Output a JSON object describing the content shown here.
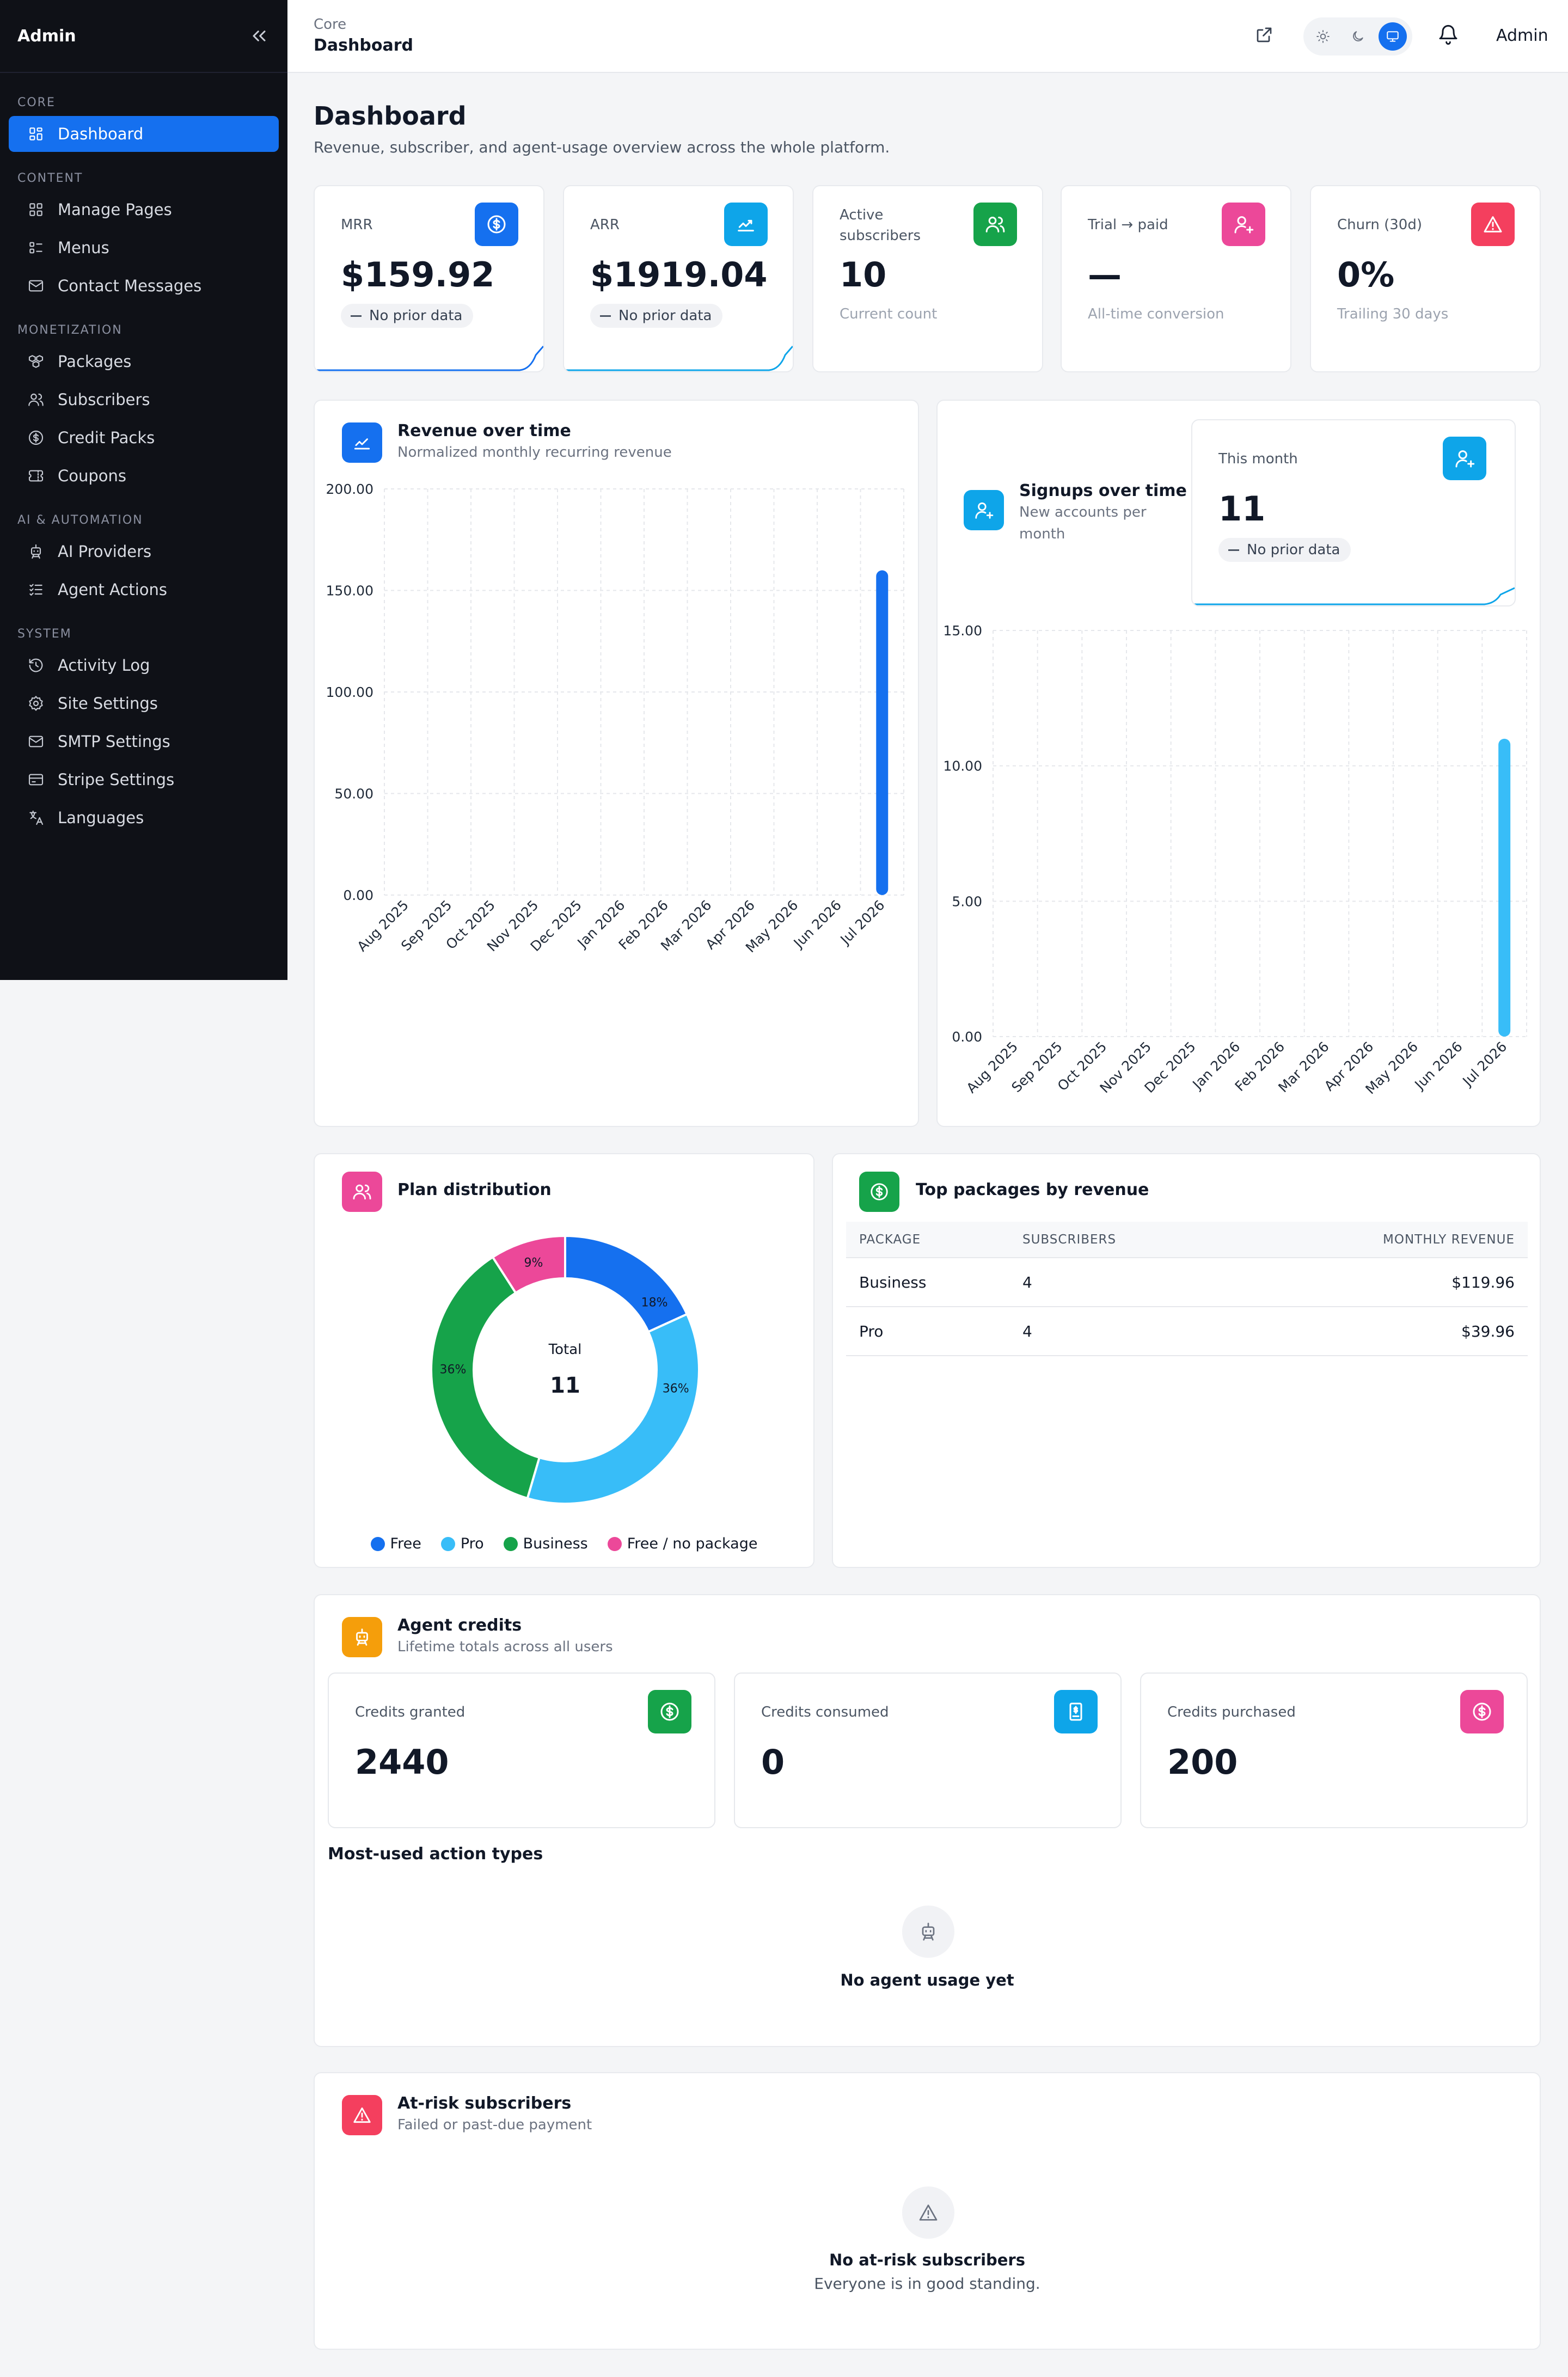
{
  "sidebar": {
    "title": "Admin",
    "sections": [
      {
        "label": "Core",
        "items": [
          {
            "label": "Dashboard",
            "icon": "dashboard-icon",
            "active": true
          }
        ]
      },
      {
        "label": "Content",
        "items": [
          {
            "label": "Manage Pages",
            "icon": "pages-icon"
          },
          {
            "label": "Menus",
            "icon": "menus-icon"
          },
          {
            "label": "Contact Messages",
            "icon": "mail-icon"
          }
        ]
      },
      {
        "label": "Monetization",
        "items": [
          {
            "label": "Packages",
            "icon": "packages-icon"
          },
          {
            "label": "Subscribers",
            "icon": "users-icon"
          },
          {
            "label": "Credit Packs",
            "icon": "dollar-circle-icon"
          },
          {
            "label": "Coupons",
            "icon": "ticket-icon"
          }
        ]
      },
      {
        "label": "AI & Automation",
        "items": [
          {
            "label": "AI Providers",
            "icon": "robot-icon"
          },
          {
            "label": "Agent Actions",
            "icon": "checklist-icon"
          }
        ]
      },
      {
        "label": "System",
        "items": [
          {
            "label": "Activity Log",
            "icon": "history-icon"
          },
          {
            "label": "Site Settings",
            "icon": "gear-icon"
          },
          {
            "label": "SMTP Settings",
            "icon": "mail-icon"
          },
          {
            "label": "Stripe Settings",
            "icon": "credit-card-icon"
          },
          {
            "label": "Languages",
            "icon": "translate-icon"
          }
        ]
      }
    ]
  },
  "topbar": {
    "crumb_parent": "Core",
    "crumb_current": "Dashboard",
    "user": "Admin"
  },
  "page": {
    "title": "Dashboard",
    "subtitle": "Revenue, subscriber, and agent-usage overview across the whole platform."
  },
  "stats": {
    "mrr": {
      "label": "MRR",
      "value": "$159.92",
      "pill": "No prior data",
      "color": "#1570ef"
    },
    "arr": {
      "label": "ARR",
      "value": "$1919.04",
      "pill": "No prior data",
      "color": "#0ea5e9"
    },
    "active": {
      "label": "Active subscribers",
      "value": "10",
      "foot": "Current count",
      "color": "#16a34a"
    },
    "trial": {
      "label": "Trial → paid",
      "value": "—",
      "foot": "All-time conversion",
      "color": "#ec4899"
    },
    "churn": {
      "label": "Churn (30d)",
      "value": "0%",
      "foot": "Trailing 30 days",
      "color": "#f43f5e"
    }
  },
  "revenue": {
    "title": "Revenue over time",
    "subtitle": "Normalized monthly recurring revenue"
  },
  "signups": {
    "title": "Signups over time",
    "subtitle_1": "New accounts per",
    "subtitle_2": "month",
    "this_month_label": "This month",
    "this_month_value": "11",
    "pill": "No prior data"
  },
  "plan": {
    "title": "Plan distribution",
    "center_label": "Total",
    "center_value": "11"
  },
  "packages": {
    "title": "Top packages by revenue",
    "headers": [
      "PACKAGE",
      "SUBSCRIBERS",
      "MONTHLY REVENUE"
    ],
    "rows": [
      {
        "name": "Business",
        "subscribers": "4",
        "revenue": "$119.96"
      },
      {
        "name": "Pro",
        "subscribers": "4",
        "revenue": "$39.96"
      }
    ]
  },
  "credits": {
    "title": "Agent credits",
    "subtitle": "Lifetime totals across all users",
    "granted": {
      "label": "Credits granted",
      "value": "2440"
    },
    "consumed": {
      "label": "Credits consumed",
      "value": "0"
    },
    "purchased": {
      "label": "Credits purchased",
      "value": "200"
    },
    "actions_title": "Most-used action types",
    "empty": "No agent usage yet"
  },
  "atrisk": {
    "title": "At-risk subscribers",
    "subtitle": "Failed or past-due payment",
    "empty_title": "No at-risk subscribers",
    "empty_sub": "Everyone is in good standing."
  },
  "chart_data": [
    {
      "type": "bar",
      "categories": [
        "Aug 2025",
        "Sep 2025",
        "Oct 2025",
        "Nov 2025",
        "Dec 2025",
        "Jan 2026",
        "Feb 2026",
        "Mar 2026",
        "Apr 2026",
        "May 2026",
        "Jun 2026",
        "Jul 2026"
      ],
      "values": [
        0,
        0,
        0,
        0,
        0,
        0,
        0,
        0,
        0,
        0,
        0,
        159.92
      ],
      "ylim": [
        0,
        200
      ],
      "yticks": [
        "0.00",
        "50.00",
        "100.00",
        "150.00",
        "200.00"
      ],
      "color": "#1570ef",
      "grid": true
    },
    {
      "type": "bar",
      "categories": [
        "Aug 2025",
        "Sep 2025",
        "Oct 2025",
        "Nov 2025",
        "Dec 2025",
        "Jan 2026",
        "Feb 2026",
        "Mar 2026",
        "Apr 2026",
        "May 2026",
        "Jun 2026",
        "Jul 2026"
      ],
      "values": [
        0,
        0,
        0,
        0,
        0,
        0,
        0,
        0,
        0,
        0,
        0,
        11
      ],
      "ylim": [
        0,
        15
      ],
      "yticks": [
        "0.00",
        "5.00",
        "10.00",
        "15.00"
      ],
      "color": "#38bdf8",
      "grid": true
    },
    {
      "type": "pie",
      "labels": [
        "Free",
        "Pro",
        "Business",
        "Free / no package"
      ],
      "values": [
        2,
        4,
        4,
        1
      ],
      "percent_labels": [
        "18%",
        "36%",
        "36%",
        "9%"
      ],
      "colors": [
        "#1570ef",
        "#38bdf8",
        "#16a34a",
        "#ec4899"
      ],
      "legend": "bottom"
    }
  ]
}
